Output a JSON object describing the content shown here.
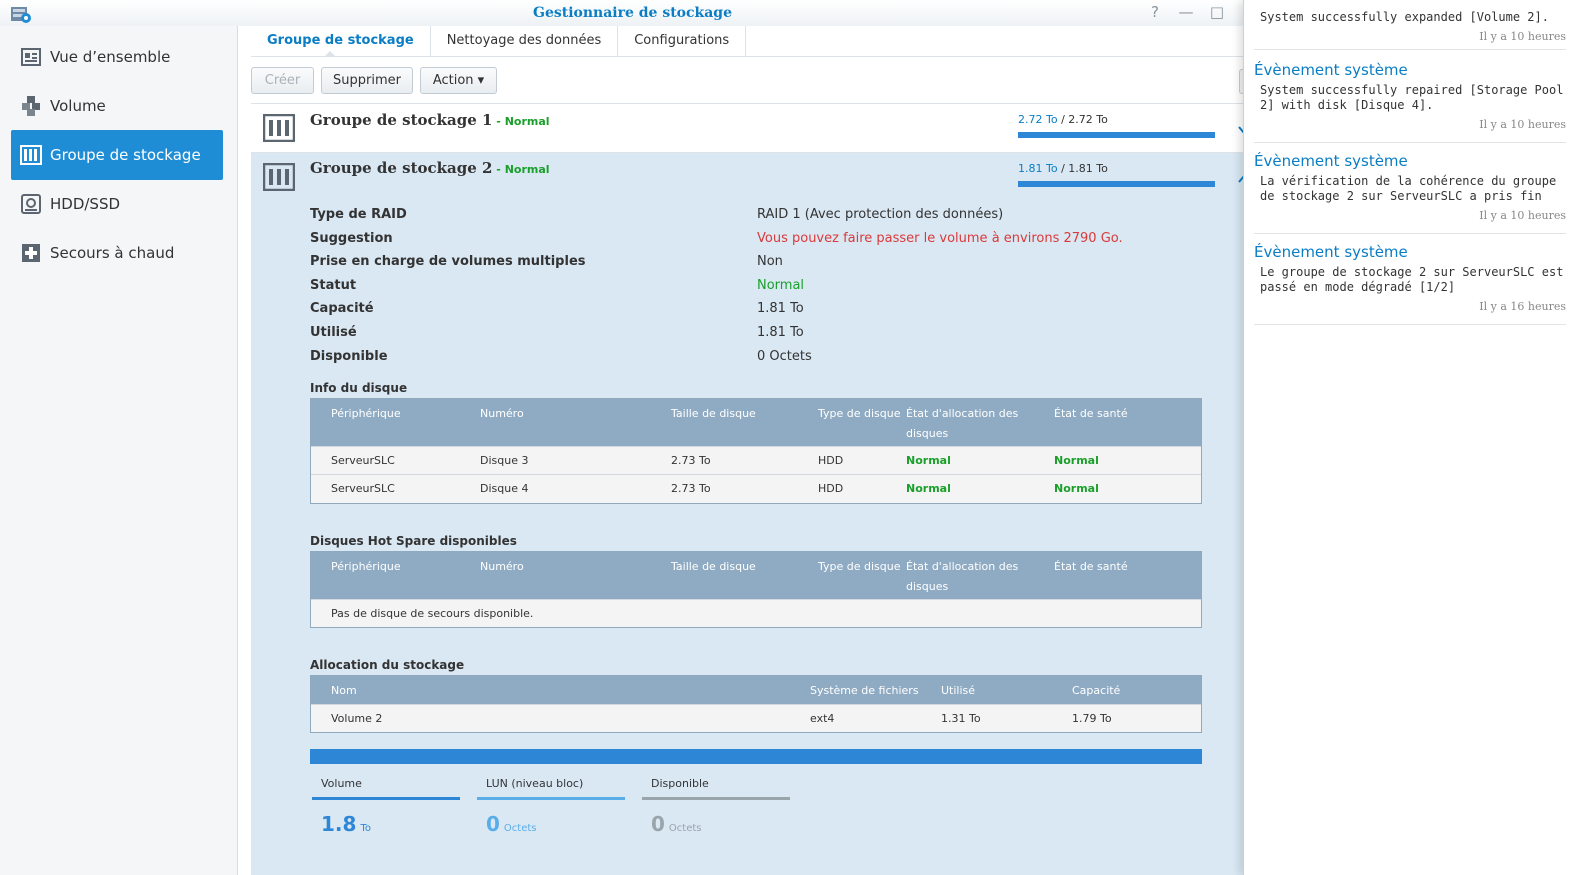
{
  "window": {
    "title": "Gestionnaire de stockage",
    "help": "?",
    "minimize": "—",
    "maximize": "□"
  },
  "sidebar": {
    "items": [
      {
        "label": "Vue d’ensemble",
        "icon": "overview-icon"
      },
      {
        "label": "Volume",
        "icon": "volume-cubes-icon"
      },
      {
        "label": "Groupe de stockage",
        "icon": "storage-pool-icon",
        "active": true
      },
      {
        "label": "HDD/SSD",
        "icon": "hdd-icon"
      },
      {
        "label": "Secours à chaud",
        "icon": "hot-spare-icon"
      }
    ]
  },
  "tabs": [
    "Groupe de stockage",
    "Nettoyage des données",
    "Configurations"
  ],
  "toolbar": {
    "create": "Créer",
    "delete": "Supprimer",
    "action": "Action ▾"
  },
  "pools": [
    {
      "name": "Groupe de stockage 1",
      "sep": " - ",
      "status": "Normal",
      "used": "2.72 To",
      "slash": " / ",
      "total": "2.72 To"
    },
    {
      "name": "Groupe de stockage 2",
      "sep": " - ",
      "status": "Normal",
      "used": "1.81 To",
      "slash": " / ",
      "total": "1.81 To"
    }
  ],
  "details": [
    {
      "label": "Type de RAID",
      "value": "RAID 1 (Avec protection des données)"
    },
    {
      "label": "Suggestion",
      "value": "Vous pouvez faire passer le volume à environs 2790 Go."
    },
    {
      "label": "Prise en charge de volumes multiples",
      "value": "Non"
    },
    {
      "label": "Statut",
      "value": "Normal"
    },
    {
      "label": "Capacité",
      "value": "1.81 To"
    },
    {
      "label": "Utilisé",
      "value": "1.81 To"
    },
    {
      "label": "Disponible",
      "value": "0 Octets"
    }
  ],
  "disk_info": {
    "title": "Info du disque",
    "headers": [
      "Périphérique",
      "Numéro",
      "Taille de disque",
      "Type de disque",
      "État d'allocation des",
      "disques",
      "État de santé"
    ],
    "rows": [
      [
        "ServeurSLC",
        "Disque 3",
        "2.73 To",
        "HDD",
        "Normal",
        "Normal"
      ],
      [
        "ServeurSLC",
        "Disque 4",
        "2.73 To",
        "HDD",
        "Normal",
        "Normal"
      ]
    ]
  },
  "hot_spare": {
    "title": "Disques Hot Spare disponibles",
    "headers": [
      "Périphérique",
      "Numéro",
      "Taille de disque",
      "Type de disque",
      "État d'allocation des",
      "disques",
      "État de santé"
    ],
    "empty": "Pas de disque de secours disponible."
  },
  "allocation": {
    "title": "Allocation du stockage",
    "headers": [
      "Nom",
      "Système de fichiers",
      "Utilisé",
      "Capacité"
    ],
    "rows": [
      [
        "Volume 2",
        "ext4",
        "1.31 To",
        "1.79 To"
      ]
    ]
  },
  "usage_legend": [
    {
      "label": "Volume",
      "value": "1.8",
      "unit": "To",
      "color": "#2d86d6"
    },
    {
      "label": "LUN (niveau bloc)",
      "value": "0",
      "unit": "Octets",
      "color": "#5aaee8"
    },
    {
      "label": "Disponible",
      "value": "0",
      "unit": "Octets",
      "color": "#9aa4ab"
    }
  ],
  "notifications": [
    {
      "title": "",
      "body": "System successfully expanded [Volume 2].",
      "time": "Il y a 10 heures"
    },
    {
      "title": "Évènement système",
      "body": "System successfully repaired [Storage Pool 2] with disk [Disque 4].",
      "time": "Il y a 10 heures"
    },
    {
      "title": "Évènement système",
      "body": "La vérification de la cohérence du groupe de stockage 2 sur ServeurSLC a pris fin",
      "time": "Il y a 10 heures"
    },
    {
      "title": "Évènement système",
      "body": "Le groupe de stockage 2 sur ServeurSLC est passé en mode dégradé [1/2]",
      "time": "Il y a 16 heures"
    }
  ],
  "colors": {
    "accent": "#1f8dd6",
    "title_blue": "#0a7dc4",
    "ok_green": "#1aa02a",
    "warn_red": "#d93a3a",
    "panel_bg": "#dae8f4",
    "table_header": "#8fabc3"
  }
}
